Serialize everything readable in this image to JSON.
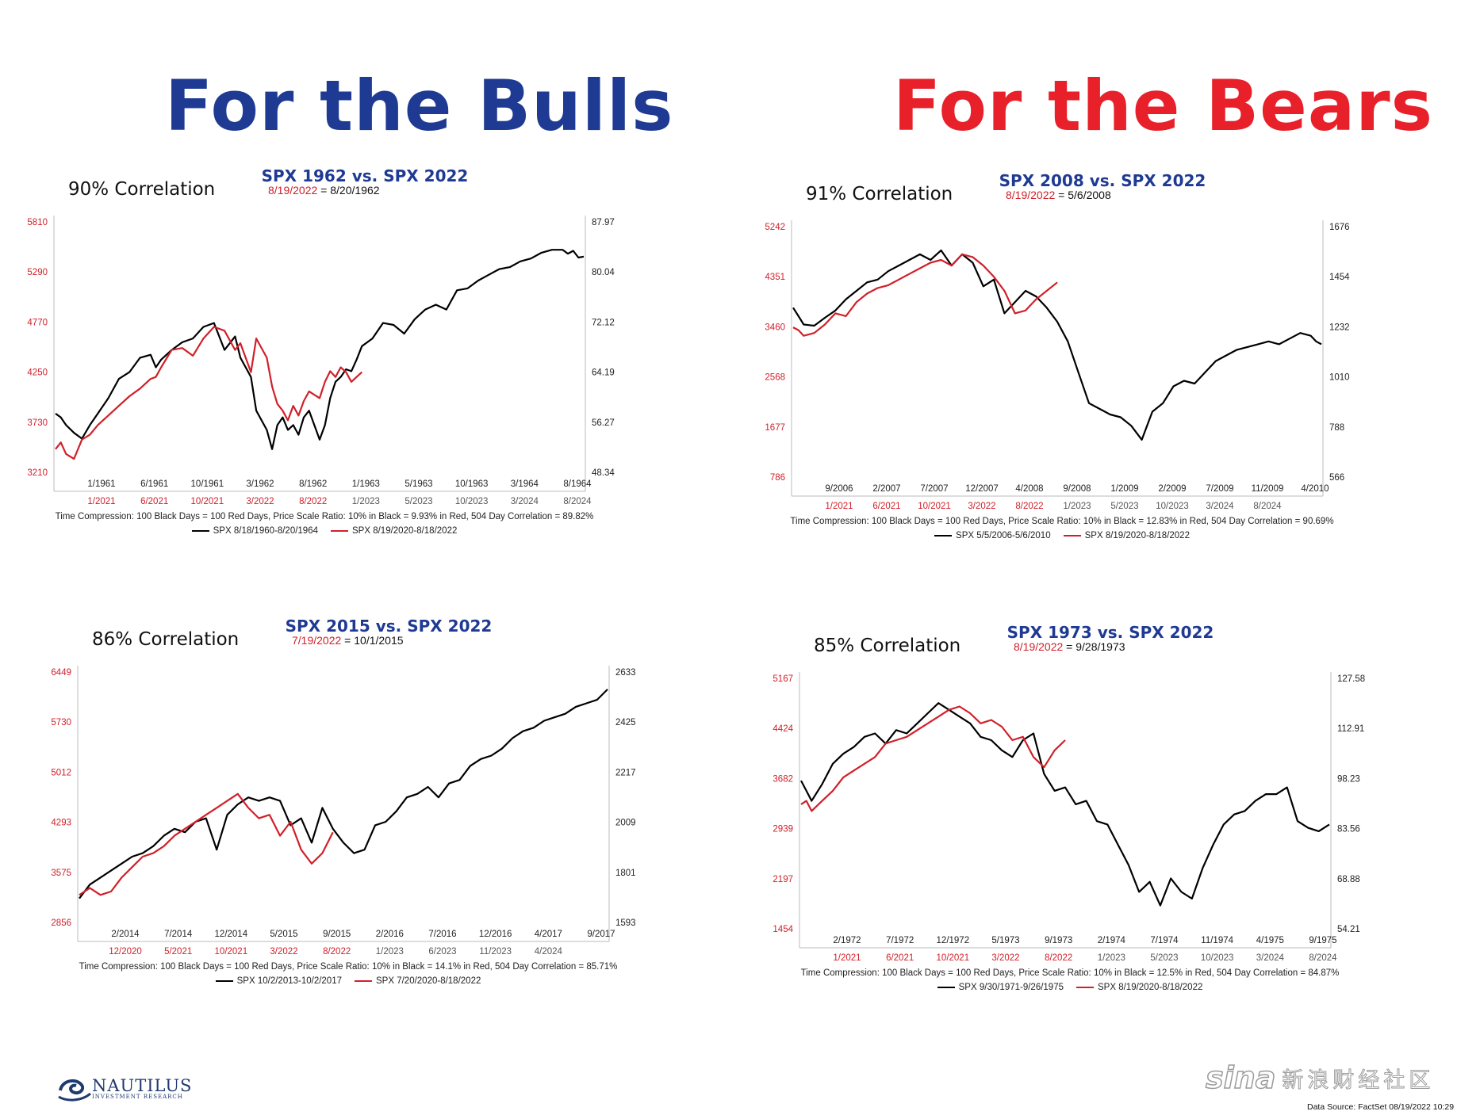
{
  "headlines": {
    "bulls": {
      "text": "For the Bulls",
      "color": "#1f3a93"
    },
    "bears": {
      "text": "For the Bears",
      "color": "#e8202a"
    }
  },
  "colors": {
    "black_series": "#000000",
    "red_series": "#d0202a",
    "title": "#1f3a93"
  },
  "logo": {
    "name": "NAUTILUS",
    "sub": "INVESTMENT RESEARCH",
    "icon": "wave-swirl-icon"
  },
  "watermark": {
    "brand": "sina",
    "text": "新浪财经社区"
  },
  "data_source": "Data Source: FactSet   08/19/2022 10:29",
  "chart_data": [
    {
      "type": "line",
      "title": "SPX 1962 vs. SPX 2022",
      "correlation": "90% Correlation",
      "date_red": "8/19/2022",
      "date_black": "= 8/20/1962",
      "left_ticks": [
        "5810",
        "5290",
        "4770",
        "4250",
        "3730",
        "3210"
      ],
      "right_ticks": [
        "87.97",
        "80.04",
        "72.12",
        "64.19",
        "56.27",
        "48.34"
      ],
      "left_range": [
        3210,
        5810
      ],
      "x_black_labels": [
        "1/1961",
        "6/1961",
        "10/1961",
        "3/1962",
        "8/1962",
        "1/1963",
        "5/1963",
        "10/1963",
        "3/1964",
        "8/1964"
      ],
      "x_red_labels": [
        "1/2021",
        "6/2021",
        "10/2021",
        "3/2022",
        "8/2022",
        "1/2023",
        "5/2023",
        "10/2023",
        "3/2024",
        "8/2024"
      ],
      "note": "Time Compression: 100 Black Days = 100 Red Days,  Price Scale Ratio: 10% in Black = 9.93% in Red, 504 Day Correlation = 89.82%",
      "series": [
        {
          "name": "SPX 8/18/1960-8/20/1964",
          "color": "#000000",
          "x": [
            0,
            0.01,
            0.02,
            0.035,
            0.05,
            0.065,
            0.08,
            0.1,
            0.12,
            0.14,
            0.16,
            0.18,
            0.19,
            0.2,
            0.22,
            0.24,
            0.26,
            0.28,
            0.3,
            0.32,
            0.34,
            0.35,
            0.37,
            0.38,
            0.4,
            0.41,
            0.42,
            0.43,
            0.44,
            0.45,
            0.46,
            0.47,
            0.48,
            0.5,
            0.51,
            0.52,
            0.53,
            0.54,
            0.55,
            0.56,
            0.57,
            0.58,
            0.6,
            0.62,
            0.64,
            0.66,
            0.68,
            0.7,
            0.72,
            0.74,
            0.76,
            0.78,
            0.8,
            0.82,
            0.84,
            0.86,
            0.88,
            0.9,
            0.92,
            0.94,
            0.96,
            0.97,
            0.98,
            0.99,
            1.0
          ],
          "y": [
            3820,
            3780,
            3700,
            3620,
            3560,
            3700,
            3820,
            3980,
            4180,
            4250,
            4400,
            4430,
            4300,
            4380,
            4480,
            4560,
            4600,
            4720,
            4760,
            4480,
            4620,
            4400,
            4200,
            3850,
            3650,
            3450,
            3700,
            3780,
            3650,
            3700,
            3600,
            3780,
            3850,
            3550,
            3700,
            3980,
            4150,
            4200,
            4280,
            4260,
            4380,
            4520,
            4600,
            4760,
            4740,
            4650,
            4800,
            4900,
            4950,
            4900,
            5100,
            5120,
            5200,
            5260,
            5320,
            5340,
            5400,
            5430,
            5490,
            5520,
            5520,
            5480,
            5510,
            5440,
            5450
          ]
        },
        {
          "name": "SPX 8/19/2020-8/18/2022",
          "color": "#d0202a",
          "x": [
            0,
            0.01,
            0.02,
            0.035,
            0.05,
            0.065,
            0.08,
            0.1,
            0.12,
            0.14,
            0.16,
            0.18,
            0.19,
            0.2,
            0.22,
            0.24,
            0.26,
            0.28,
            0.3,
            0.32,
            0.34,
            0.35,
            0.37,
            0.38,
            0.4,
            0.41,
            0.42,
            0.43,
            0.44,
            0.45,
            0.46,
            0.47,
            0.48,
            0.5,
            0.51,
            0.52,
            0.53,
            0.54,
            0.55,
            0.56,
            0.57,
            0.58
          ],
          "y": [
            3450,
            3520,
            3400,
            3350,
            3550,
            3600,
            3700,
            3800,
            3900,
            4000,
            4080,
            4180,
            4200,
            4300,
            4480,
            4500,
            4420,
            4600,
            4720,
            4680,
            4480,
            4550,
            4250,
            4600,
            4400,
            4100,
            3920,
            3850,
            3750,
            3900,
            3800,
            3950,
            4050,
            3980,
            4150,
            4260,
            4200,
            4300,
            4250,
            4150,
            4200,
            4250
          ]
        }
      ]
    },
    {
      "type": "line",
      "title": "SPX 2008 vs. SPX 2022",
      "correlation": "91% Correlation",
      "date_red": "8/19/2022",
      "date_black": "= 5/6/2008",
      "left_ticks": [
        "5242",
        "4351",
        "3460",
        "2568",
        "1677",
        "786"
      ],
      "right_ticks": [
        "1676",
        "1454",
        "1232",
        "1010",
        "788",
        "566"
      ],
      "left_range": [
        786,
        5242
      ],
      "x_black_labels": [
        "9/2006",
        "2/2007",
        "7/2007",
        "12/2007",
        "4/2008",
        "9/2008",
        "1/2009",
        "2/2009",
        "7/2009",
        "11/2009",
        "4/2010"
      ],
      "x_red_labels": [
        "1/2021",
        "6/2021",
        "10/2021",
        "3/2022",
        "8/2022",
        "1/2023",
        "5/2023",
        "10/2023",
        "3/2024",
        "8/2024"
      ],
      "note": "Time Compression: 100 Black Days = 100 Red Days,  Price Scale Ratio: 10% in Black = 12.83% in Red, 504 Day Correlation = 90.69%",
      "series": [
        {
          "name": "SPX 5/5/2006-5/6/2010",
          "color": "#000000",
          "x": [
            0,
            0.01,
            0.02,
            0.04,
            0.06,
            0.08,
            0.1,
            0.12,
            0.14,
            0.16,
            0.18,
            0.2,
            0.22,
            0.24,
            0.26,
            0.28,
            0.3,
            0.32,
            0.34,
            0.36,
            0.38,
            0.4,
            0.42,
            0.44,
            0.46,
            0.48,
            0.5,
            0.52,
            0.54,
            0.56,
            0.58,
            0.6,
            0.62,
            0.64,
            0.66,
            0.68,
            0.7,
            0.72,
            0.74,
            0.76,
            0.78,
            0.8,
            0.82,
            0.84,
            0.86,
            0.88,
            0.9,
            0.92,
            0.94,
            0.96,
            0.98,
            0.99,
            1.0
          ],
          "y": [
            3800,
            3650,
            3500,
            3480,
            3620,
            3750,
            3950,
            4100,
            4250,
            4300,
            4450,
            4550,
            4650,
            4750,
            4650,
            4820,
            4550,
            4750,
            4600,
            4180,
            4300,
            3700,
            3900,
            4100,
            4000,
            3800,
            3550,
            3200,
            2650,
            2100,
            2000,
            1900,
            1850,
            1700,
            1450,
            1950,
            2100,
            2400,
            2500,
            2450,
            2650,
            2850,
            2950,
            3050,
            3100,
            3150,
            3200,
            3150,
            3250,
            3350,
            3300,
            3200,
            3150
          ]
        },
        {
          "name": "SPX 8/19/2020-8/18/2022",
          "color": "#d0202a",
          "x": [
            0,
            0.01,
            0.02,
            0.04,
            0.06,
            0.08,
            0.1,
            0.12,
            0.14,
            0.16,
            0.18,
            0.2,
            0.22,
            0.24,
            0.26,
            0.28,
            0.3,
            0.32,
            0.34,
            0.36,
            0.38,
            0.4,
            0.42,
            0.44,
            0.46,
            0.48,
            0.5
          ],
          "y": [
            3450,
            3400,
            3300,
            3350,
            3500,
            3700,
            3650,
            3900,
            4050,
            4150,
            4200,
            4300,
            4400,
            4500,
            4600,
            4650,
            4550,
            4750,
            4700,
            4550,
            4350,
            4100,
            3700,
            3750,
            3950,
            4100,
            4250
          ]
        }
      ]
    },
    {
      "type": "line",
      "title": "SPX 2015 vs. SPX 2022",
      "correlation": "86% Correlation",
      "date_red": "7/19/2022",
      "date_black": "= 10/1/2015",
      "left_ticks": [
        "6449",
        "5730",
        "5012",
        "4293",
        "3575",
        "2856"
      ],
      "right_ticks": [
        "2633",
        "2425",
        "2217",
        "2009",
        "1801",
        "1593"
      ],
      "left_range": [
        2856,
        6449
      ],
      "x_black_labels": [
        "2/2014",
        "7/2014",
        "12/2014",
        "5/2015",
        "9/2015",
        "2/2016",
        "7/2016",
        "12/2016",
        "4/2017",
        "9/2017"
      ],
      "x_red_labels": [
        "12/2020",
        "5/2021",
        "10/2021",
        "3/2022",
        "8/2022",
        "1/2023",
        "6/2023",
        "11/2023",
        "4/2024"
      ],
      "note": "Time Compression: 100 Black Days = 100 Red Days,  Price Scale Ratio: 10% in Black = 14.1% in Red, 504 Day Correlation = 85.71%",
      "series": [
        {
          "name": "SPX 10/2/2013-10/2/2017",
          "color": "#000000",
          "x": [
            0,
            0.02,
            0.04,
            0.06,
            0.08,
            0.1,
            0.12,
            0.14,
            0.16,
            0.18,
            0.2,
            0.22,
            0.24,
            0.26,
            0.28,
            0.3,
            0.32,
            0.34,
            0.36,
            0.38,
            0.4,
            0.42,
            0.44,
            0.46,
            0.48,
            0.5,
            0.52,
            0.54,
            0.56,
            0.58,
            0.6,
            0.62,
            0.64,
            0.66,
            0.68,
            0.7,
            0.72,
            0.74,
            0.76,
            0.78,
            0.8,
            0.82,
            0.84,
            0.86,
            0.88,
            0.9,
            0.92,
            0.94,
            0.96,
            0.98,
            1.0
          ],
          "y": [
            3200,
            3400,
            3500,
            3600,
            3700,
            3800,
            3850,
            3950,
            4100,
            4200,
            4150,
            4300,
            4350,
            3900,
            4400,
            4550,
            4650,
            4600,
            4650,
            4600,
            4250,
            4350,
            4000,
            4500,
            4200,
            4000,
            3850,
            3900,
            4250,
            4300,
            4450,
            4650,
            4700,
            4800,
            4650,
            4850,
            4900,
            5100,
            5200,
            5250,
            5350,
            5500,
            5600,
            5650,
            5750,
            5800,
            5850,
            5950,
            6000,
            6050,
            6200
          ]
        },
        {
          "name": "SPX 7/20/2020-8/18/2022",
          "color": "#d0202a",
          "x": [
            0,
            0.02,
            0.04,
            0.06,
            0.08,
            0.1,
            0.12,
            0.14,
            0.16,
            0.18,
            0.2,
            0.22,
            0.24,
            0.26,
            0.28,
            0.3,
            0.32,
            0.34,
            0.36,
            0.38,
            0.4,
            0.42,
            0.44,
            0.46,
            0.48
          ],
          "y": [
            3250,
            3350,
            3250,
            3300,
            3500,
            3650,
            3800,
            3850,
            3950,
            4100,
            4200,
            4300,
            4400,
            4500,
            4600,
            4700,
            4500,
            4350,
            4400,
            4100,
            4300,
            3900,
            3700,
            3850,
            4150
          ]
        }
      ]
    },
    {
      "type": "line",
      "title": "SPX 1973 vs. SPX 2022",
      "correlation": "85% Correlation",
      "date_red": "8/19/2022",
      "date_black": "= 9/28/1973",
      "left_ticks": [
        "5167",
        "4424",
        "3682",
        "2939",
        "2197",
        "1454"
      ],
      "right_ticks": [
        "127.58",
        "112.91",
        "98.23",
        "83.56",
        "68.88",
        "54.21"
      ],
      "left_range": [
        1454,
        5167
      ],
      "x_black_labels": [
        "2/1972",
        "7/1972",
        "12/1972",
        "5/1973",
        "9/1973",
        "2/1974",
        "7/1974",
        "11/1974",
        "4/1975",
        "9/1975"
      ],
      "x_red_labels": [
        "1/2021",
        "6/2021",
        "10/2021",
        "3/2022",
        "8/2022",
        "1/2023",
        "5/2023",
        "10/2023",
        "3/2024",
        "8/2024"
      ],
      "note": "Time Compression: 100 Black Days = 100 Red Days,  Price Scale Ratio: 10% in Black = 12.5% in Red, 504 Day Correlation = 84.87%",
      "series": [
        {
          "name": "SPX 9/30/1971-9/26/1975",
          "color": "#000000",
          "x": [
            0,
            0.01,
            0.02,
            0.04,
            0.06,
            0.08,
            0.1,
            0.12,
            0.14,
            0.16,
            0.18,
            0.2,
            0.22,
            0.24,
            0.26,
            0.28,
            0.3,
            0.32,
            0.34,
            0.36,
            0.38,
            0.4,
            0.42,
            0.44,
            0.46,
            0.48,
            0.5,
            0.52,
            0.54,
            0.56,
            0.58,
            0.6,
            0.62,
            0.64,
            0.66,
            0.68,
            0.7,
            0.72,
            0.74,
            0.76,
            0.78,
            0.8,
            0.82,
            0.84,
            0.86,
            0.88,
            0.9,
            0.92,
            0.94,
            0.96,
            0.98,
            1.0
          ],
          "y": [
            3650,
            3500,
            3350,
            3600,
            3900,
            4050,
            4150,
            4300,
            4350,
            4200,
            4400,
            4350,
            4500,
            4650,
            4800,
            4700,
            4600,
            4500,
            4300,
            4250,
            4100,
            4000,
            4250,
            4350,
            3750,
            3500,
            3550,
            3300,
            3350,
            3050,
            3000,
            2700,
            2400,
            2000,
            2150,
            1800,
            2200,
            2000,
            1900,
            2350,
            2700,
            3000,
            3150,
            3200,
            3350,
            3450,
            3450,
            3550,
            3050,
            2950,
            2900,
            3000
          ]
        },
        {
          "name": "SPX 8/19/2020-8/18/2022",
          "color": "#d0202a",
          "x": [
            0,
            0.01,
            0.02,
            0.04,
            0.06,
            0.08,
            0.1,
            0.12,
            0.14,
            0.16,
            0.18,
            0.2,
            0.22,
            0.24,
            0.26,
            0.28,
            0.3,
            0.32,
            0.34,
            0.36,
            0.38,
            0.4,
            0.42,
            0.44,
            0.46,
            0.48,
            0.5
          ],
          "y": [
            3300,
            3350,
            3200,
            3350,
            3500,
            3700,
            3800,
            3900,
            4000,
            4200,
            4250,
            4300,
            4400,
            4500,
            4600,
            4700,
            4750,
            4650,
            4500,
            4550,
            4450,
            4250,
            4300,
            4000,
            3850,
            4100,
            4250
          ]
        }
      ]
    }
  ]
}
